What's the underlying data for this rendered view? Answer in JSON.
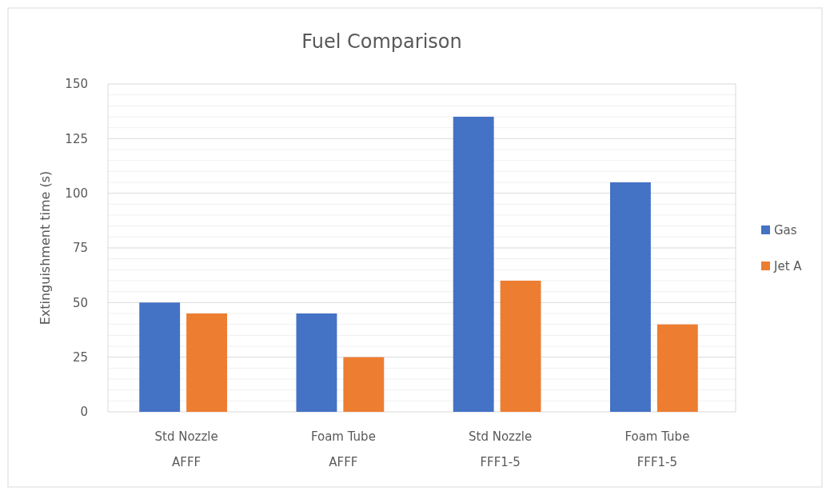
{
  "chart_data": {
    "type": "bar",
    "title": "Fuel Comparison",
    "ylabel": "Extinguishment time (s)",
    "categories": [
      "Std Nozzle\nAFFF",
      "Foam Tube\nAFFF",
      "Std Nozzle\nFFF1-5",
      "Foam Tube\nFFF1-5"
    ],
    "series": [
      {
        "name": "Gas",
        "color": "#4472c4",
        "values": [
          50,
          45,
          135,
          105
        ]
      },
      {
        "name": "Jet A",
        "color": "#ed7d31",
        "values": [
          45,
          25,
          60,
          40
        ]
      }
    ],
    "ylim": [
      0,
      150
    ],
    "yticks": [
      0,
      {
        "value": 5,
        "label": null
      },
      {
        "value": 10,
        "label": null
      },
      {
        "value": 15,
        "label": null
      },
      {
        "value": 20,
        "label": null
      },
      25,
      {
        "value": 30,
        "label": null
      },
      {
        "value": 35,
        "label": null
      },
      {
        "value": 40,
        "label": null
      },
      {
        "value": 45,
        "label": null
      },
      50,
      {
        "value": 55,
        "label": null
      },
      {
        "value": 60,
        "label": null
      },
      {
        "value": 65,
        "label": null
      },
      {
        "value": 70,
        "label": null
      },
      75,
      {
        "value": 80,
        "label": null
      },
      {
        "value": 85,
        "label": null
      },
      {
        "value": 90,
        "label": null
      },
      {
        "value": 95,
        "label": null
      },
      100,
      {
        "value": 105,
        "label": null
      },
      {
        "value": 110,
        "label": null
      },
      {
        "value": 115,
        "label": null
      },
      {
        "value": 120,
        "label": null
      },
      125,
      {
        "value": 130,
        "label": null
      },
      {
        "value": 135,
        "label": null
      },
      {
        "value": 140,
        "label": null
      },
      {
        "value": 145,
        "label": null
      },
      150
    ],
    "grid": true,
    "legend": "right"
  }
}
